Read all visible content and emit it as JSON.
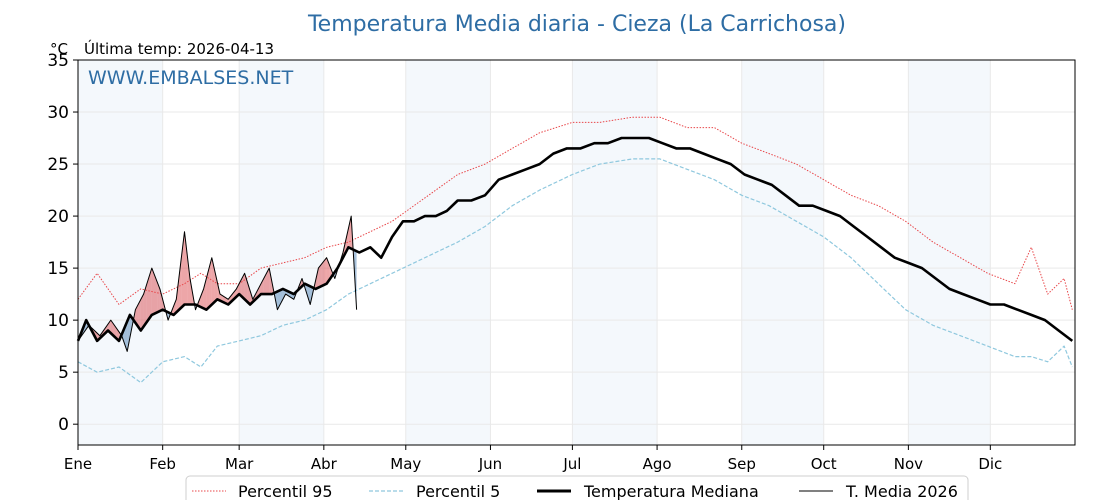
{
  "chart_data": {
    "type": "line",
    "title": "Temperatura Media diaria - Cieza (La Carrichosa)",
    "unit_label": "°C",
    "last_reading_label": "Última temp: 2026-04-13",
    "watermark": "WWW.EMBALSES.NET",
    "x_ticks": [
      "Ene",
      "Feb",
      "Mar",
      "Abr",
      "May",
      "Jun",
      "Jul",
      "Ago",
      "Sep",
      "Oct",
      "Nov",
      "Dic"
    ],
    "y_ticks": [
      0,
      5,
      10,
      15,
      20,
      25,
      30,
      35
    ],
    "ylim": [
      -2,
      35
    ],
    "xlim": [
      1,
      366
    ],
    "grid": true,
    "legend_position": "bottom",
    "colors": {
      "title": "#2e6da4",
      "p95": "#e8474a",
      "p5": "#8fc8de",
      "median": "#000000",
      "current": "#000000",
      "fill_above": "#d83a3f",
      "fill_below": "#3f78b0",
      "band": "#f4f8fc"
    },
    "series": [
      {
        "name": "Percentil 95",
        "style": "dotted",
        "x": [
          1,
          8,
          16,
          24,
          32,
          40,
          46,
          52,
          60,
          68,
          76,
          84,
          92,
          100,
          108,
          116,
          124,
          132,
          140,
          150,
          160,
          170,
          182,
          192,
          204,
          214,
          224,
          234,
          244,
          254,
          264,
          274,
          284,
          294,
          304,
          314,
          324,
          334,
          344,
          350,
          356,
          362,
          365
        ],
        "y": [
          12,
          14.5,
          11.5,
          13,
          12.5,
          13.5,
          14.5,
          13.5,
          13.5,
          15,
          15.5,
          16,
          17,
          17.5,
          18.5,
          19.5,
          21,
          22.5,
          24,
          25,
          26.5,
          28,
          29,
          29,
          29.5,
          29.5,
          28.5,
          28.5,
          27,
          26,
          25,
          23.5,
          22,
          21,
          19.5,
          17.5,
          16,
          14.5,
          13.5,
          17,
          12.5,
          14,
          11
        ]
      },
      {
        "name": "Percentil 5",
        "style": "dashed",
        "x": [
          1,
          8,
          16,
          24,
          32,
          40,
          46,
          52,
          60,
          68,
          76,
          84,
          92,
          100,
          108,
          116,
          124,
          132,
          140,
          150,
          160,
          170,
          182,
          192,
          204,
          214,
          224,
          234,
          244,
          254,
          264,
          274,
          284,
          294,
          304,
          314,
          324,
          334,
          344,
          350,
          356,
          362,
          365
        ],
        "y": [
          6,
          5,
          5.5,
          4,
          6,
          6.5,
          5.5,
          7.5,
          8,
          8.5,
          9.5,
          10,
          11,
          12.5,
          13.5,
          14.5,
          15.5,
          16.5,
          17.5,
          19,
          21,
          22.5,
          24,
          25,
          25.5,
          25.5,
          24.5,
          23.5,
          22,
          21,
          19.5,
          18,
          16,
          13.5,
          11,
          9.5,
          8.5,
          7.5,
          6.5,
          6.5,
          6,
          7.5,
          5.5
        ]
      },
      {
        "name": "Temperatura Mediana",
        "style": "solid-thick",
        "x": [
          1,
          4,
          8,
          12,
          16,
          20,
          24,
          28,
          32,
          36,
          40,
          44,
          48,
          52,
          56,
          60,
          64,
          68,
          72,
          76,
          80,
          84,
          88,
          92,
          96,
          100,
          104,
          108,
          112,
          116,
          120,
          124,
          128,
          132,
          136,
          140,
          145,
          150,
          155,
          160,
          165,
          170,
          175,
          180,
          185,
          190,
          195,
          200,
          205,
          210,
          215,
          220,
          225,
          230,
          235,
          240,
          245,
          250,
          255,
          260,
          265,
          270,
          275,
          280,
          285,
          290,
          295,
          300,
          305,
          310,
          315,
          320,
          325,
          330,
          335,
          340,
          345,
          350,
          355,
          360,
          365
        ],
        "y": [
          8,
          10,
          8,
          9,
          8,
          10.5,
          9,
          10.5,
          11,
          10.5,
          11.5,
          11.5,
          11,
          12,
          11.5,
          12.5,
          11.5,
          12.5,
          12.5,
          13,
          12.5,
          13.5,
          13,
          13.5,
          15,
          17,
          16.5,
          17,
          16,
          18,
          19.5,
          19.5,
          20,
          20,
          20.5,
          21.5,
          21.5,
          22,
          23.5,
          24,
          24.5,
          25,
          26,
          26.5,
          26.5,
          27,
          27,
          27.5,
          27.5,
          27.5,
          27,
          26.5,
          26.5,
          26,
          25.5,
          25,
          24,
          23.5,
          23,
          22,
          21,
          21,
          20.5,
          20,
          19,
          18,
          17,
          16,
          15.5,
          15,
          14,
          13,
          12.5,
          12,
          11.5,
          11.5,
          11,
          10.5,
          10,
          9,
          8
        ]
      },
      {
        "name": "T. Media 2026",
        "style": "solid-thin",
        "x": [
          1,
          5,
          9,
          13,
          17,
          19,
          22,
          25,
          28,
          31,
          34,
          37,
          40,
          42,
          44,
          47,
          50,
          53,
          56,
          59,
          62,
          65,
          68,
          71,
          74,
          77,
          80,
          83,
          86,
          89,
          92,
          95,
          98,
          101,
          103
        ],
        "y": [
          8,
          9.5,
          8.5,
          10,
          8.5,
          7,
          11,
          12.5,
          15,
          13,
          10,
          12,
          18.5,
          14,
          11,
          13,
          16,
          12.5,
          12,
          13,
          14.5,
          12,
          13.5,
          15,
          11,
          12.5,
          12,
          14,
          11.5,
          15,
          16,
          14,
          16.5,
          20,
          11
        ]
      }
    ]
  }
}
